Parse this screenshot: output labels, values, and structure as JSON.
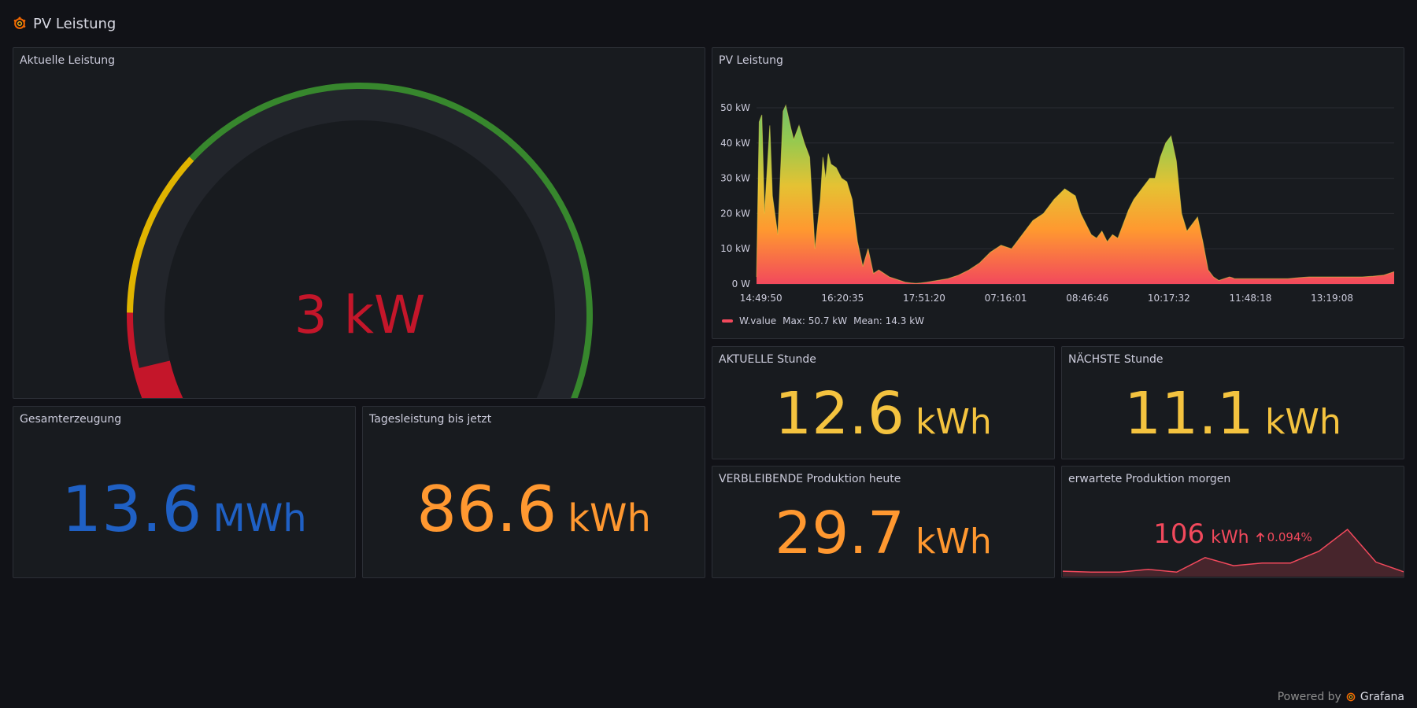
{
  "dashboard": {
    "title": "PV Leistung"
  },
  "panels": {
    "gauge": {
      "title": "Aktuelle Leistung",
      "value": "3",
      "unit": "kW",
      "value_text": "3 kW",
      "value_color": "#c4162a",
      "max": 50,
      "current": 3,
      "thresholds": [
        {
          "from": 0,
          "to": 6,
          "color": "#c4162a"
        },
        {
          "from": 6,
          "to": 15,
          "color": "#e0b400"
        },
        {
          "from": 15,
          "to": 50,
          "color": "#37872d"
        }
      ]
    },
    "timeseries": {
      "title": "PV Leistung",
      "legend": {
        "series": "W.value",
        "max": "Max: 50.7 kW",
        "mean": "Mean: 14.3 kW",
        "color": "#f2495c"
      }
    },
    "gesamterzeugung": {
      "title": "Gesamterzeugung",
      "value": "13.6",
      "unit": "MWh",
      "color": "#1f60c4"
    },
    "tagesleistung": {
      "title": "Tagesleistung bis jetzt",
      "value": "86.6",
      "unit": "kWh",
      "color": "#ff9830"
    },
    "aktuelle_stunde": {
      "title": "AKTUELLE Stunde",
      "value": "12.6",
      "unit": "kWh",
      "color": "#f2cc0c"
    },
    "naechste_stunde": {
      "title": "NÄCHSTE Stunde",
      "value": "11.1",
      "unit": "kWh",
      "color": "#f2cc0c"
    },
    "verbleibende": {
      "title": "VERBLEIBENDE Produktion heute",
      "value": "29.7",
      "unit": "kWh",
      "color": "#ff9830"
    },
    "morgen": {
      "title": "erwartete Produktion morgen",
      "value": "106",
      "unit": "kWh",
      "delta": "0.094%",
      "color": "#f2495c",
      "sparkline": [
        6,
        5,
        5,
        8,
        5,
        21,
        12,
        15,
        15,
        28,
        52,
        16,
        5
      ]
    }
  },
  "chart_data": {
    "type": "area",
    "title": "PV Leistung",
    "y_tick_labels": [
      "0 W",
      "10 kW",
      "20 kW",
      "30 kW",
      "40 kW",
      "50 kW"
    ],
    "ylim": [
      0,
      50
    ],
    "x_tick_labels": [
      "14:49:50",
      "16:20:35",
      "17:51:20",
      "07:16:01",
      "08:46:46",
      "10:17:32",
      "11:48:18",
      "13:19:08"
    ],
    "xlim": [
      0,
      24
    ],
    "grid": true,
    "legend_placement": "bottom-left",
    "series": [
      {
        "name": "W.value",
        "x": [
          0,
          0.1,
          0.2,
          0.3,
          0.5,
          0.6,
          0.8,
          1.0,
          1.1,
          1.3,
          1.4,
          1.6,
          1.8,
          2.0,
          2.2,
          2.4,
          2.5,
          2.6,
          2.7,
          2.8,
          3.0,
          3.2,
          3.4,
          3.6,
          3.8,
          4.0,
          4.2,
          4.4,
          4.6,
          4.8,
          5.0,
          5.2,
          5.4,
          5.6,
          5.8,
          6.0,
          6.2,
          6.4,
          6.8,
          7.2,
          7.6,
          8.0,
          8.4,
          8.8,
          9.2,
          9.6,
          10.0,
          10.4,
          10.8,
          11.2,
          11.6,
          12.0,
          12.2,
          12.4,
          12.6,
          12.8,
          13.0,
          13.2,
          13.4,
          13.6,
          13.8,
          14.0,
          14.2,
          14.4,
          14.6,
          14.8,
          15.0,
          15.2,
          15.4,
          15.6,
          15.8,
          16.0,
          16.2,
          16.4,
          16.6,
          16.8,
          17.0,
          17.2,
          17.4,
          17.6,
          17.8,
          17.9,
          18.0,
          18.2,
          18.4,
          18.6,
          18.8,
          19.0,
          19.2,
          19.4,
          19.6,
          19.8,
          20.0,
          20.4,
          20.8,
          21.2,
          21.6,
          22.0,
          22.4,
          22.8,
          23.2,
          23.6,
          24.0
        ],
        "y": [
          2,
          46,
          48,
          20,
          45,
          25,
          14,
          49,
          50.7,
          44,
          41,
          45,
          40,
          36,
          10,
          24,
          36,
          30,
          37,
          34,
          33,
          30,
          29,
          24,
          12,
          5,
          10,
          3,
          4,
          3,
          2,
          1.5,
          1,
          0.5,
          0.3,
          0.2,
          0.3,
          0.5,
          1,
          1.5,
          2.5,
          4,
          6,
          9,
          11,
          10,
          14,
          18,
          20,
          24,
          27,
          25,
          20,
          17,
          14,
          13,
          15,
          12,
          14,
          13,
          17,
          21,
          24,
          26,
          28,
          30,
          30,
          36,
          40,
          42,
          35,
          20,
          15,
          17,
          19,
          12,
          4,
          2,
          1,
          1.5,
          2,
          1.8,
          1.5,
          1.5,
          1.5,
          1.5,
          1.5,
          1.5,
          1.5,
          1.5,
          1.5,
          1.5,
          1.5,
          1.8,
          2,
          2,
          2,
          2,
          2,
          2,
          2.2,
          2.5,
          3.5
        ]
      }
    ]
  },
  "footer": {
    "powered_by": "Powered by",
    "brand": "Grafana"
  },
  "icons": {
    "logo": "grafana-logo-icon",
    "delta_arrow": "arrow-up-icon"
  }
}
